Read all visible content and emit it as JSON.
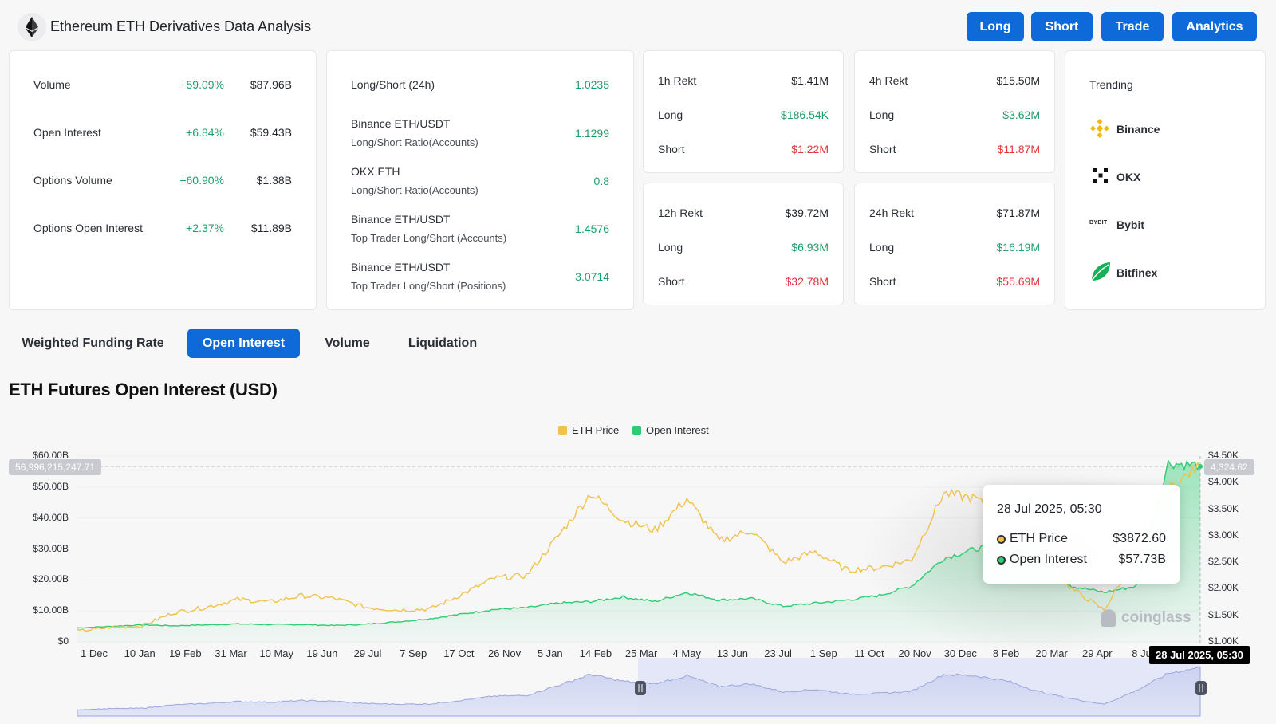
{
  "header": {
    "title": "Ethereum ETH Derivatives Data Analysis",
    "buttons": [
      "Long",
      "Short",
      "Trade",
      "Analytics"
    ]
  },
  "summary": [
    {
      "label": "Volume",
      "change": "+59.09%",
      "value": "$87.96B"
    },
    {
      "label": "Open Interest",
      "change": "+6.84%",
      "value": "$59.43B"
    },
    {
      "label": "Options Volume",
      "change": "+60.90%",
      "value": "$1.38B"
    },
    {
      "label": "Options Open Interest",
      "change": "+2.37%",
      "value": "$11.89B"
    }
  ],
  "ratios": [
    {
      "label": "Long/Short (24h)",
      "sub": "",
      "value": "1.0235"
    },
    {
      "label": "Binance ETH/USDT",
      "sub": "Long/Short Ratio(Accounts)",
      "value": "1.1299"
    },
    {
      "label": "OKX ETH",
      "sub": "Long/Short Ratio(Accounts)",
      "value": "0.8"
    },
    {
      "label": "Binance ETH/USDT",
      "sub": "Top Trader Long/Short (Accounts)",
      "value": "1.4576"
    },
    {
      "label": "Binance ETH/USDT",
      "sub": "Top Trader Long/Short (Positions)",
      "value": "3.0714"
    }
  ],
  "rekt": [
    {
      "title": "1h Rekt",
      "total": "$1.41M",
      "long_label": "Long",
      "long": "$186.54K",
      "short_label": "Short",
      "short": "$1.22M"
    },
    {
      "title": "4h Rekt",
      "total": "$15.50M",
      "long_label": "Long",
      "long": "$3.62M",
      "short_label": "Short",
      "short": "$11.87M"
    },
    {
      "title": "12h Rekt",
      "total": "$39.72M",
      "long_label": "Long",
      "long": "$6.93M",
      "short_label": "Short",
      "short": "$32.78M"
    },
    {
      "title": "24h Rekt",
      "total": "$71.87M",
      "long_label": "Long",
      "long": "$16.19M",
      "short_label": "Short",
      "short": "$55.69M"
    }
  ],
  "trending": {
    "title": "Trending",
    "items": [
      {
        "name": "Binance",
        "icon": "binance-icon"
      },
      {
        "name": "OKX",
        "icon": "okx-icon"
      },
      {
        "name": "Bybit",
        "icon": "bybit-icon",
        "logo_text": "BYBIT"
      },
      {
        "name": "Bitfinex",
        "icon": "bitfinex-icon"
      }
    ]
  },
  "tabs": [
    {
      "label": "Weighted Funding Rate",
      "active": false
    },
    {
      "label": "Open Interest",
      "active": true
    },
    {
      "label": "Volume",
      "active": false
    },
    {
      "label": "Liquidation",
      "active": false
    }
  ],
  "chart": {
    "title": "ETH Futures Open Interest (USD)",
    "legend": [
      {
        "name": "ETH Price",
        "color": "#f0c14b"
      },
      {
        "name": "Open Interest",
        "color": "#2ecc71"
      }
    ],
    "crosshair_left_label": "56,996,215,247.71",
    "crosshair_right_label": "4,324.62",
    "crosshair_x_label": "28 Jul 2025, 05:30",
    "watermark": "coinglass",
    "tooltip": {
      "date": "28 Jul 2025, 05:30",
      "rows": [
        {
          "name": "ETH Price",
          "value": "$3872.60",
          "color": "#f0c14b"
        },
        {
          "name": "Open Interest",
          "value": "$57.73B",
          "color": "#2ecc71"
        }
      ]
    }
  },
  "chart_data": {
    "type": "line",
    "title": "ETH Futures Open Interest (USD)",
    "x_ticks": [
      "1 Dec",
      "10 Jan",
      "19 Feb",
      "31 Mar",
      "10 May",
      "19 Jun",
      "29 Jul",
      "7 Sep",
      "17 Oct",
      "26 Nov",
      "5 Jan",
      "14 Feb",
      "25 Mar",
      "4 May",
      "13 Jun",
      "23 Jul",
      "1 Sep",
      "11 Oct",
      "20 Nov",
      "30 Dec",
      "8 Feb",
      "20 Mar",
      "29 Apr",
      "8 Jul"
    ],
    "y_left_ticks": [
      "$0",
      "$10.00B",
      "$20.00B",
      "$30.00B",
      "$40.00B",
      "$50.00B",
      "$60.00B"
    ],
    "y_right_ticks": [
      "$1.00K",
      "$1.50K",
      "$2.00K",
      "$2.50K",
      "$3.00K",
      "$3.50K",
      "$4.00K",
      "$4.50K"
    ],
    "y_left_range": [
      0,
      60000000000
    ],
    "y_right_range": [
      1000,
      4500
    ],
    "legend_position": "top-center",
    "series": [
      {
        "name": "ETH Price",
        "axis": "right",
        "values": [
          1200,
          1270,
          1300,
          1550,
          1650,
          1800,
          1750,
          1870,
          1820,
          1650,
          1600,
          1620,
          1900,
          2200,
          2250,
          3000,
          3800,
          3300,
          3100,
          3700,
          2900,
          3100,
          2500,
          2700,
          2350,
          2400,
          2550,
          3800,
          3700,
          3300,
          2500,
          2000,
          1600,
          2600,
          3870,
          4320
        ]
      },
      {
        "name": "Open Interest",
        "axis": "left",
        "values": [
          4500000000.0,
          5000000000.0,
          5500000000.0,
          5200000000.0,
          5500000000.0,
          5800000000.0,
          5600000000.0,
          5600000000.0,
          5300000000.0,
          5700000000.0,
          6500000000.0,
          7500000000.0,
          9000000000.0,
          10500000000.0,
          11000000000.0,
          12500000000.0,
          13000000000.0,
          14500000000.0,
          13000000000.0,
          16000000000.0,
          13500000000.0,
          14000000000.0,
          11500000000.0,
          12500000000.0,
          13500000000.0,
          15000000000.0,
          18000000000.0,
          27000000000.0,
          30000000000.0,
          32000000000.0,
          26000000000.0,
          18000000000.0,
          16000000000.0,
          18000000000.0,
          57730000000.0,
          57000000000.0
        ]
      }
    ]
  }
}
